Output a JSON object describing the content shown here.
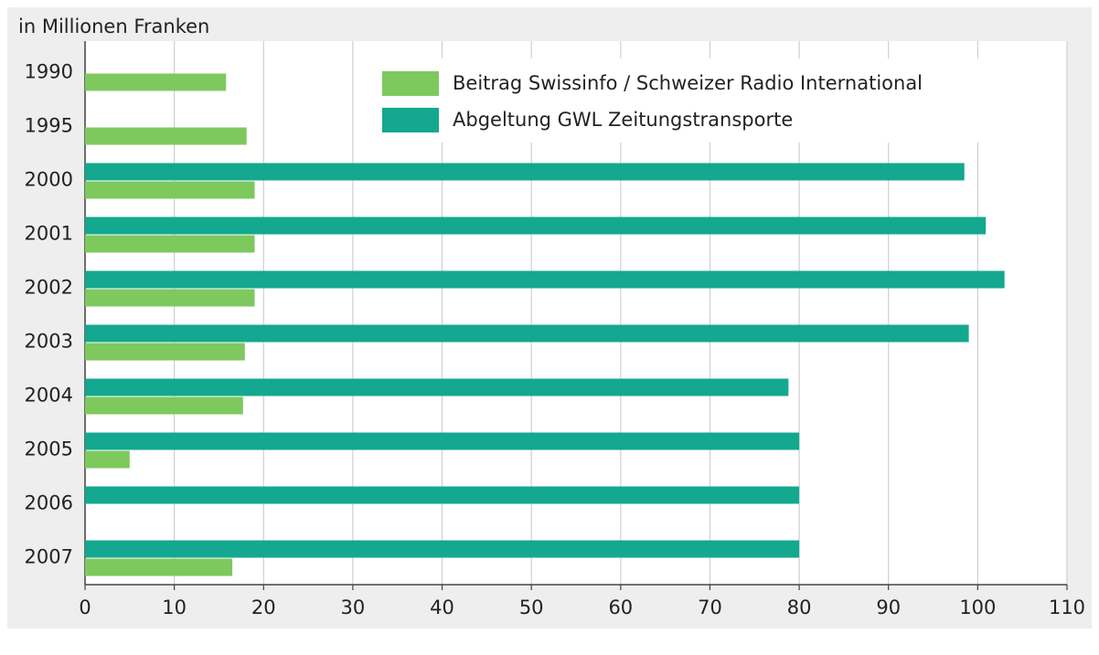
{
  "chart_data": {
    "type": "hbar",
    "title": "in Millionen Franken",
    "categories": [
      "1990",
      "1995",
      "2000",
      "2001",
      "2002",
      "2003",
      "2004",
      "2005",
      "2006",
      "2007"
    ],
    "series": [
      {
        "name": "Beitrag Swissinfo / Schweizer Radio International",
        "color": "#7dc95e",
        "values": [
          15.8,
          18.1,
          19,
          19,
          19,
          17.9,
          17.7,
          5,
          null,
          16.5
        ]
      },
      {
        "name": "Abgeltung GWL Zeitungstransporte",
        "color": "#13a88f",
        "values": [
          null,
          null,
          98.5,
          100.9,
          103,
          99,
          78.8,
          80,
          80,
          80
        ]
      }
    ],
    "xlim": [
      0,
      110
    ],
    "xticks": [
      0,
      10,
      20,
      30,
      40,
      50,
      60,
      70,
      80,
      90,
      100,
      110
    ],
    "grid": true,
    "legend": "top"
  }
}
